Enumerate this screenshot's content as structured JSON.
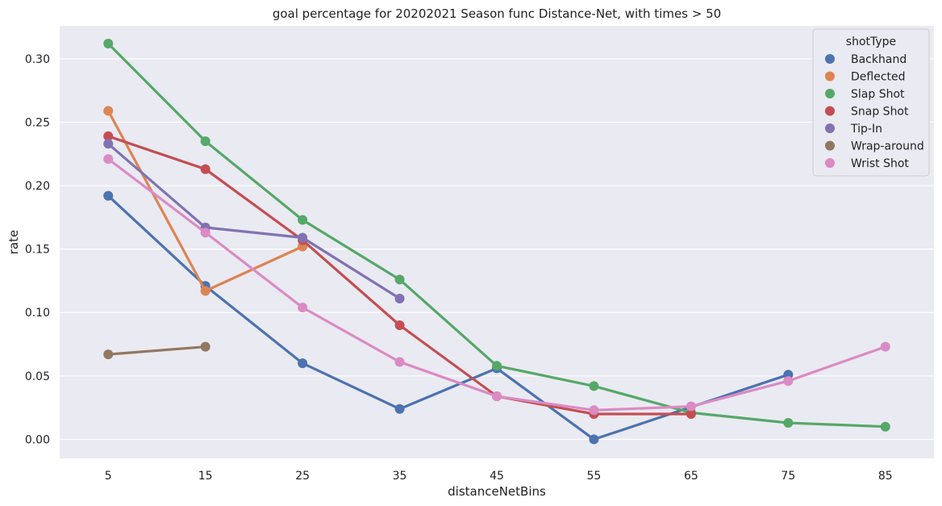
{
  "chart_data": {
    "type": "line",
    "title": "goal percentage for 20202021 Season func Distance-Net, with times > 50",
    "xlabel": "distanceNetBins",
    "ylabel": "rate",
    "categories": [
      "5",
      "15",
      "25",
      "35",
      "45",
      "55",
      "65",
      "75",
      "85"
    ],
    "ylim": [
      -0.015,
      0.326
    ],
    "yticks": [
      0.0,
      0.05,
      0.1,
      0.15,
      0.2,
      0.25,
      0.3
    ],
    "ytick_labels": [
      "0.00",
      "0.05",
      "0.10",
      "0.15",
      "0.20",
      "0.25",
      "0.30"
    ],
    "grid": true,
    "legend": {
      "title": "shotType",
      "placement": "top-right"
    },
    "series": [
      {
        "name": "Backhand",
        "color": "#4c72b0",
        "values": [
          0.192,
          0.121,
          0.06,
          0.024,
          0.056,
          0.0,
          null,
          0.051,
          null
        ]
      },
      {
        "name": "Deflected",
        "color": "#dd8452",
        "values": [
          0.259,
          0.117,
          0.152,
          null,
          null,
          null,
          null,
          null,
          null
        ]
      },
      {
        "name": "Slap Shot",
        "color": "#55a868",
        "values": [
          0.312,
          0.235,
          0.173,
          0.126,
          0.058,
          0.042,
          0.021,
          0.013,
          0.01
        ]
      },
      {
        "name": "Snap Shot",
        "color": "#c44e52",
        "values": [
          0.239,
          0.213,
          0.157,
          0.09,
          0.034,
          0.02,
          0.02,
          null,
          null
        ]
      },
      {
        "name": "Tip-In",
        "color": "#8172b3",
        "values": [
          0.233,
          0.167,
          0.159,
          0.111,
          null,
          null,
          null,
          null,
          null
        ]
      },
      {
        "name": "Wrap-around",
        "color": "#937860",
        "values": [
          0.067,
          0.073,
          null,
          null,
          null,
          null,
          null,
          null,
          null
        ]
      },
      {
        "name": "Wrist Shot",
        "color": "#da8bc3",
        "values": [
          0.221,
          0.163,
          0.104,
          0.061,
          0.034,
          0.023,
          0.026,
          0.046,
          0.073
        ]
      }
    ],
    "colors": {
      "plot_background": "#eaeaf2",
      "grid": "#ffffff"
    }
  }
}
